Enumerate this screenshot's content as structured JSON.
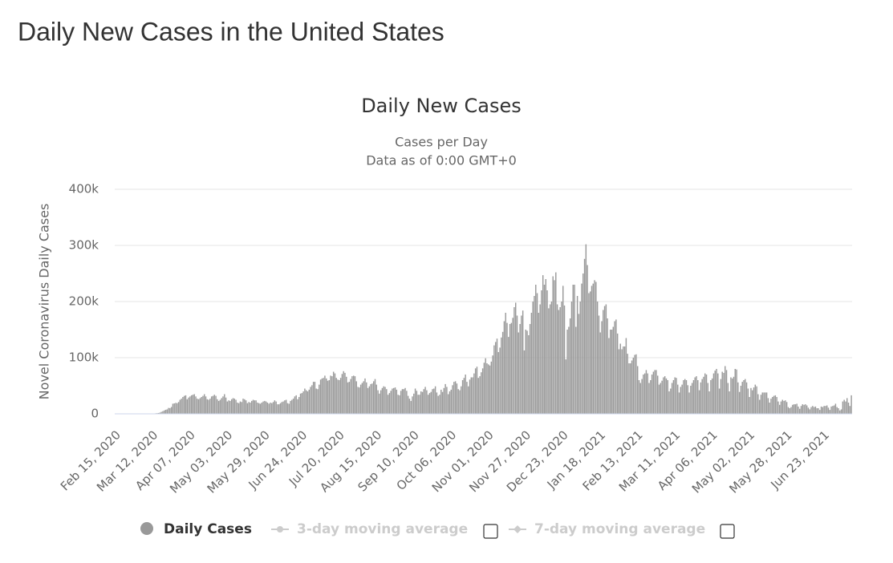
{
  "page_title": "Daily New Cases in the United States",
  "chart_data": {
    "type": "bar",
    "title": "Daily New Cases",
    "subtitle": [
      "Cases per Day",
      "Data as of 0:00 GMT+0"
    ],
    "y_label": "Novel Coronavirus Daily Cases",
    "ylim": [
      0,
      400000
    ],
    "yticks": [
      0,
      {
        "value": 100000,
        "label": "100k"
      },
      {
        "value": 200000,
        "label": "200k"
      },
      {
        "value": 300000,
        "label": "300k"
      },
      {
        "value": 400000,
        "label": "400k"
      }
    ],
    "grid": true,
    "categories": [
      "Feb 15, 2020",
      null,
      null,
      null,
      null,
      null,
      null,
      null,
      null,
      null,
      null,
      null,
      null,
      null,
      null,
      null,
      null,
      null,
      null,
      null,
      null,
      null,
      null,
      null,
      null,
      null,
      "Mar 12, 2020",
      null,
      null,
      null,
      null,
      null,
      null,
      null,
      null,
      null,
      null,
      null,
      null,
      null,
      null,
      null,
      null,
      null,
      null,
      null,
      null,
      null,
      null,
      null,
      null,
      null,
      "Apr 07, 2020",
      null,
      null,
      null,
      null,
      null,
      null,
      null,
      null,
      null,
      null,
      null,
      null,
      null,
      null,
      null,
      null,
      null,
      null,
      null,
      null,
      null,
      null,
      null,
      null,
      null,
      "May 03, 2020",
      null,
      null,
      null,
      null,
      null,
      null,
      null,
      null,
      null,
      null,
      null,
      null,
      null,
      null,
      null,
      null,
      null,
      null,
      null,
      null,
      null,
      null,
      null,
      null,
      null,
      "May 29, 2020",
      null,
      null,
      null,
      null,
      null,
      null,
      null,
      null,
      null,
      null,
      null,
      null,
      null,
      null,
      null,
      null,
      null,
      null,
      null,
      null,
      null,
      null,
      null,
      null,
      null,
      "Jun 24, 2020",
      null,
      null,
      null,
      null,
      null,
      null,
      null,
      null,
      null,
      null,
      null,
      null,
      null,
      null,
      null,
      null,
      null,
      null,
      null,
      null,
      null,
      null,
      null,
      null,
      null,
      "Jul 20, 2020",
      null,
      null,
      null,
      null,
      null,
      null,
      null,
      null,
      null,
      null,
      null,
      null,
      null,
      null,
      null,
      null,
      null,
      null,
      null,
      null,
      null,
      null,
      null,
      null,
      null,
      "Aug 15, 2020",
      null,
      null,
      null,
      null,
      null,
      null,
      null,
      null,
      null,
      null,
      null,
      null,
      null,
      null,
      null,
      null,
      null,
      null,
      null,
      null,
      null,
      null,
      null,
      null,
      null,
      "Sep 10, 2020",
      null,
      null,
      null,
      null,
      null,
      null,
      null,
      null,
      null,
      null,
      null,
      null,
      null,
      null,
      null,
      null,
      null,
      null,
      null,
      null,
      null,
      null,
      null,
      null,
      null,
      "Oct 06, 2020",
      null,
      null,
      null,
      null,
      null,
      null,
      null,
      null,
      null,
      null,
      null,
      null,
      null,
      null,
      null,
      null,
      null,
      null,
      null,
      null,
      null,
      null,
      null,
      null,
      null,
      "Nov 01, 2020",
      null,
      null,
      null,
      null,
      null,
      null,
      null,
      null,
      null,
      null,
      null,
      null,
      null,
      null,
      null,
      null,
      null,
      null,
      null,
      null,
      null,
      null,
      null,
      null,
      null,
      "Nov 27, 2020",
      null,
      null,
      null,
      null,
      null,
      null,
      null,
      null,
      null,
      null,
      null,
      null,
      null,
      null,
      null,
      null,
      null,
      null,
      null,
      null,
      null,
      null,
      null,
      null,
      null,
      "Dec 23, 2020",
      null,
      null,
      null,
      null,
      null,
      null,
      null,
      null,
      null,
      null,
      null,
      null,
      null,
      null,
      null,
      null,
      null,
      null,
      null,
      null,
      null,
      null,
      null,
      null,
      null,
      "Jan 18, 2021",
      null,
      null,
      null,
      null,
      null,
      null,
      null,
      null,
      null,
      null,
      null,
      null,
      null,
      null,
      null,
      null,
      null,
      null,
      null,
      null,
      null,
      null,
      null,
      null,
      null,
      "Feb 13, 2021",
      null,
      null,
      null,
      null,
      null,
      null,
      null,
      null,
      null,
      null,
      null,
      null,
      null,
      null,
      null,
      null,
      null,
      null,
      null,
      null,
      null,
      null,
      null,
      null,
      null,
      "Mar 11, 2021",
      null,
      null,
      null,
      null,
      null,
      null,
      null,
      null,
      null,
      null,
      null,
      null,
      null,
      null,
      null,
      null,
      null,
      null,
      null,
      null,
      null,
      null,
      null,
      null,
      null,
      "Apr 06, 2021",
      null,
      null,
      null,
      null,
      null,
      null,
      null,
      null,
      null,
      null,
      null,
      null,
      null,
      null,
      null,
      null,
      null,
      null,
      null,
      null,
      null,
      null,
      null,
      null,
      null,
      "May 02, 2021",
      null,
      null,
      null,
      null,
      null,
      null,
      null,
      null,
      null,
      null,
      null,
      null,
      null,
      null,
      null,
      null,
      null,
      null,
      null,
      null,
      null,
      null,
      null,
      null,
      null,
      "May 28, 2021",
      null,
      null,
      null,
      null,
      null,
      null,
      null,
      null,
      null,
      null,
      null,
      null,
      null,
      null,
      null,
      null,
      null,
      null,
      null,
      null,
      null,
      null,
      null,
      null,
      null,
      "Jun 23, 2021",
      null,
      null,
      null,
      null,
      null,
      null,
      null,
      null,
      null,
      null,
      null,
      null,
      null,
      null,
      null,
      null,
      null,
      null,
      null
    ],
    "series": [
      {
        "name": "Daily Cases",
        "color": "#999999",
        "values": [
          0,
          0,
          0,
          1,
          0,
          0,
          0,
          0,
          0,
          0,
          3,
          0,
          5,
          2,
          11,
          4,
          11,
          30,
          33,
          60,
          100,
          110,
          90,
          190,
          280,
          420,
          560,
          640,
          950,
          1200,
          1500,
          2100,
          3500,
          4700,
          6000,
          7200,
          7900,
          10500,
          10200,
          12200,
          18000,
          18600,
          19500,
          19000,
          21000,
          25000,
          27000,
          30000,
          32000,
          33000,
          26000,
          29000,
          31000,
          33000,
          34000,
          35000,
          31000,
          27000,
          26000,
          28000,
          30000,
          32000,
          35000,
          31000,
          26000,
          25000,
          27000,
          31000,
          32000,
          34000,
          32000,
          26000,
          23000,
          25000,
          28000,
          31000,
          35000,
          29000,
          22000,
          24000,
          23000,
          26000,
          28000,
          27000,
          25000,
          20000,
          19000,
          22000,
          21000,
          27000,
          26000,
          24000,
          19000,
          21000,
          20000,
          23000,
          25000,
          24000,
          24000,
          20000,
          19000,
          18000,
          20000,
          22000,
          23000,
          22000,
          20000,
          18000,
          20000,
          19000,
          21000,
          24000,
          22000,
          17000,
          17000,
          19000,
          21000,
          22000,
          24000,
          25000,
          19000,
          18000,
          23000,
          25000,
          27000,
          31000,
          33000,
          26000,
          30000,
          36000,
          37000,
          40000,
          45000,
          42000,
          40000,
          43000,
          48000,
          51000,
          57000,
          57000,
          45000,
          44000,
          52000,
          61000,
          63000,
          64000,
          68000,
          63000,
          59000,
          60000,
          68000,
          67000,
          75000,
          72000,
          64000,
          61000,
          60000,
          64000,
          71000,
          76000,
          73000,
          66000,
          56000,
          57000,
          62000,
          67000,
          68000,
          67000,
          58000,
          48000,
          47000,
          52000,
          55000,
          58000,
          63000,
          56000,
          46000,
          49000,
          53000,
          54000,
          58000,
          62000,
          52000,
          42000,
          36000,
          42000,
          46000,
          49000,
          48000,
          44000,
          34000,
          37000,
          41000,
          45000,
          46000,
          47000,
          43000,
          34000,
          33000,
          41000,
          44000,
          44000,
          46000,
          41000,
          32000,
          27000,
          23000,
          31000,
          36000,
          45000,
          41000,
          34000,
          34000,
          40000,
          39000,
          44000,
          48000,
          42000,
          34000,
          37000,
          39000,
          44000,
          45000,
          49000,
          38000,
          32000,
          34000,
          43000,
          39000,
          46000,
          53000,
          48000,
          35000,
          40000,
          43000,
          51000,
          57000,
          58000,
          54000,
          44000,
          42000,
          49000,
          60000,
          64000,
          70000,
          57000,
          49000,
          61000,
          65000,
          65000,
          72000,
          81000,
          84000,
          64000,
          67000,
          74000,
          81000,
          91000,
          99000,
          90000,
          88000,
          86000,
          93000,
          104000,
          122000,
          128000,
          134000,
          110000,
          118000,
          136000,
          146000,
          165000,
          180000,
          162000,
          137000,
          160000,
          162000,
          171000,
          190000,
          198000,
          175000,
          145000,
          160000,
          175000,
          184000,
          113000,
          150000,
          148000,
          140000,
          160000,
          180000,
          200000,
          210000,
          230000,
          215000,
          180000,
          195000,
          220000,
          247000,
          230000,
          240000,
          220000,
          188000,
          195000,
          200000,
          245000,
          238000,
          252000,
          195000,
          185000,
          190000,
          200000,
          228000,
          193000,
          97000,
          150000,
          155000,
          170000,
          200000,
          230000,
          230000,
          155000,
          210000,
          178000,
          200000,
          232000,
          250000,
          276000,
          302000,
          265000,
          215000,
          218000,
          228000,
          232000,
          238000,
          235000,
          200000,
          175000,
          145000,
          165000,
          185000,
          192000,
          195000,
          170000,
          135000,
          150000,
          150000,
          155000,
          165000,
          168000,
          143000,
          115000,
          125000,
          115000,
          120000,
          120000,
          135000,
          107000,
          90000,
          90000,
          95000,
          100000,
          105000,
          106000,
          85000,
          60000,
          55000,
          62000,
          70000,
          72000,
          78000,
          72000,
          55000,
          60000,
          70000,
          75000,
          78000,
          78000,
          68000,
          52000,
          55000,
          59000,
          65000,
          67000,
          63000,
          60000,
          40000,
          45000,
          55000,
          60000,
          65000,
          64000,
          52000,
          38000,
          48000,
          52000,
          60000,
          62000,
          60000,
          51000,
          38000,
          50000,
          55000,
          60000,
          65000,
          67000,
          60000,
          42000,
          56000,
          62000,
          66000,
          72000,
          70000,
          55000,
          40000,
          60000,
          63000,
          72000,
          77000,
          80000,
          72000,
          45000,
          62000,
          75000,
          73000,
          85000,
          78000,
          55000,
          40000,
          65000,
          63000,
          66000,
          80000,
          79000,
          56000,
          39000,
          50000,
          57000,
          60000,
          62000,
          56000,
          45000,
          30000,
          46000,
          42000,
          47000,
          52000,
          49000,
          35000,
          25000,
          34000,
          38000,
          38000,
          38000,
          38000,
          28000,
          20000,
          27000,
          30000,
          32000,
          33000,
          30000,
          22000,
          16000,
          22000,
          25000,
          23000,
          24000,
          21000,
          12000,
          10000,
          12000,
          16000,
          17000,
          17000,
          18000,
          13000,
          9000,
          14000,
          17000,
          16000,
          17000,
          15000,
          11000,
          8000,
          12000,
          14000,
          12000,
          13000,
          10000,
          10000,
          7000,
          13000,
          12000,
          14000,
          14000,
          15000,
          11000,
          7000,
          13000,
          14000,
          15000,
          18000,
          12000,
          10000,
          6000,
          8000,
          22000,
          25000,
          22000,
          28000,
          20000,
          14000,
          33000
        ]
      }
    ],
    "legend_inactive": [
      "3-day moving average",
      "7-day moving average"
    ]
  }
}
